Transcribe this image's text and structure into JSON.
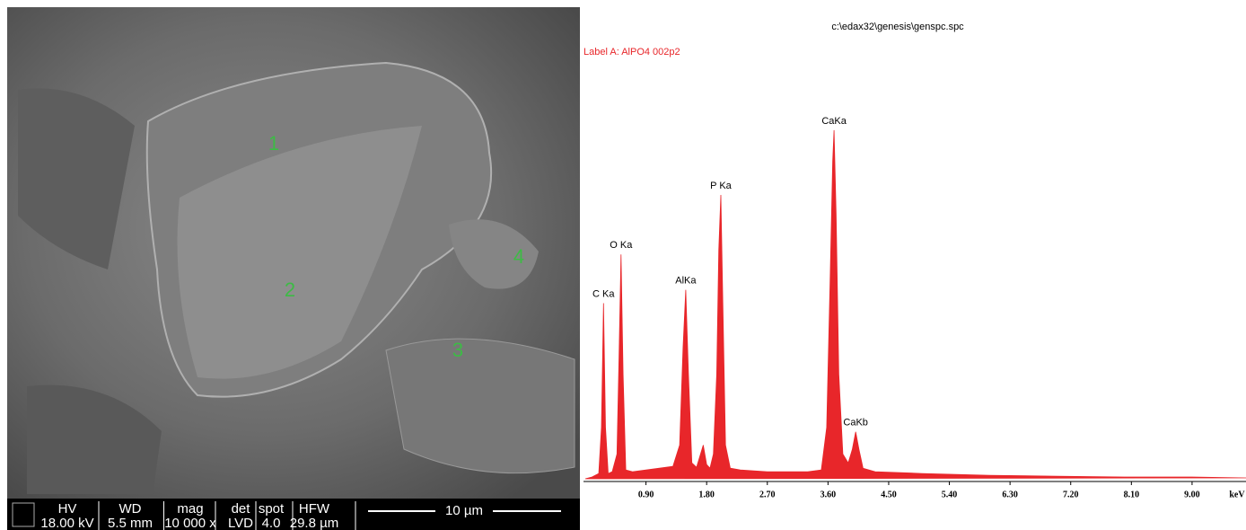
{
  "sem_image": {
    "markers": [
      "1",
      "2",
      "3",
      "4"
    ],
    "info_bar": {
      "headers": [
        "HV",
        "WD",
        "mag",
        "det",
        "spot",
        "HFW"
      ],
      "values": [
        "18.00 kV",
        "5.5 mm",
        "10 000 x",
        "LVD",
        "4.0",
        "29.8 µm"
      ]
    },
    "scale_bar": "10 µm"
  },
  "chart_data": {
    "type": "area",
    "title": "c:\\edax32\\genesis\\genspc.spc",
    "subtitle": "Label A: AlPO4 002p2",
    "x_label": "keV",
    "color": "#e8262a",
    "x": [
      0.0,
      0.1,
      0.2,
      0.24,
      0.27,
      0.3,
      0.34,
      0.4,
      0.47,
      0.5,
      0.53,
      0.56,
      0.6,
      0.7,
      0.9,
      1.1,
      1.3,
      1.4,
      1.45,
      1.49,
      1.53,
      1.58,
      1.65,
      1.75,
      1.8,
      1.85,
      1.9,
      1.95,
      1.98,
      2.01,
      2.04,
      2.08,
      2.15,
      2.3,
      2.5,
      2.7,
      3.0,
      3.3,
      3.5,
      3.58,
      3.63,
      3.67,
      3.69,
      3.72,
      3.76,
      3.82,
      3.9,
      3.96,
      4.01,
      4.06,
      4.12,
      4.3,
      5.0,
      6.0,
      7.0,
      8.0,
      9.0,
      9.8
    ],
    "values": [
      2,
      4,
      8,
      60,
      200,
      60,
      8,
      10,
      30,
      140,
      255,
      120,
      12,
      10,
      12,
      14,
      16,
      40,
      150,
      215,
      120,
      20,
      15,
      40,
      18,
      14,
      30,
      120,
      260,
      322,
      200,
      40,
      14,
      12,
      11,
      10,
      10,
      10,
      12,
      60,
      220,
      360,
      395,
      300,
      120,
      30,
      20,
      35,
      55,
      35,
      14,
      10,
      8,
      6,
      5,
      4,
      4,
      3
    ],
    "point_labels": [
      null,
      null,
      null,
      null,
      "C Ka",
      null,
      null,
      null,
      null,
      null,
      "O Ka",
      null,
      null,
      null,
      null,
      null,
      null,
      null,
      null,
      "AlKa",
      null,
      null,
      null,
      null,
      null,
      null,
      null,
      null,
      null,
      "P Ka",
      null,
      null,
      null,
      null,
      null,
      null,
      null,
      null,
      null,
      null,
      null,
      null,
      "CaKa",
      null,
      null,
      null,
      null,
      null,
      "CaKb",
      null,
      null,
      null,
      null,
      null,
      null,
      null,
      null,
      null
    ],
    "xlim": [
      0,
      9.8
    ],
    "ylim": [
      0,
      400
    ],
    "xticks": [
      {
        "value": 0.9,
        "label": "0.90"
      },
      {
        "value": 1.8,
        "label": "1.80"
      },
      {
        "value": 2.7,
        "label": "2.70"
      },
      {
        "value": 3.6,
        "label": "3.60"
      },
      {
        "value": 4.5,
        "label": "4.50"
      },
      {
        "value": 5.4,
        "label": "5.40"
      },
      {
        "value": 6.3,
        "label": "6.30"
      },
      {
        "value": 7.2,
        "label": "7.20"
      },
      {
        "value": 8.1,
        "label": "8.10"
      },
      {
        "value": 9.0,
        "label": "9.00"
      }
    ]
  }
}
